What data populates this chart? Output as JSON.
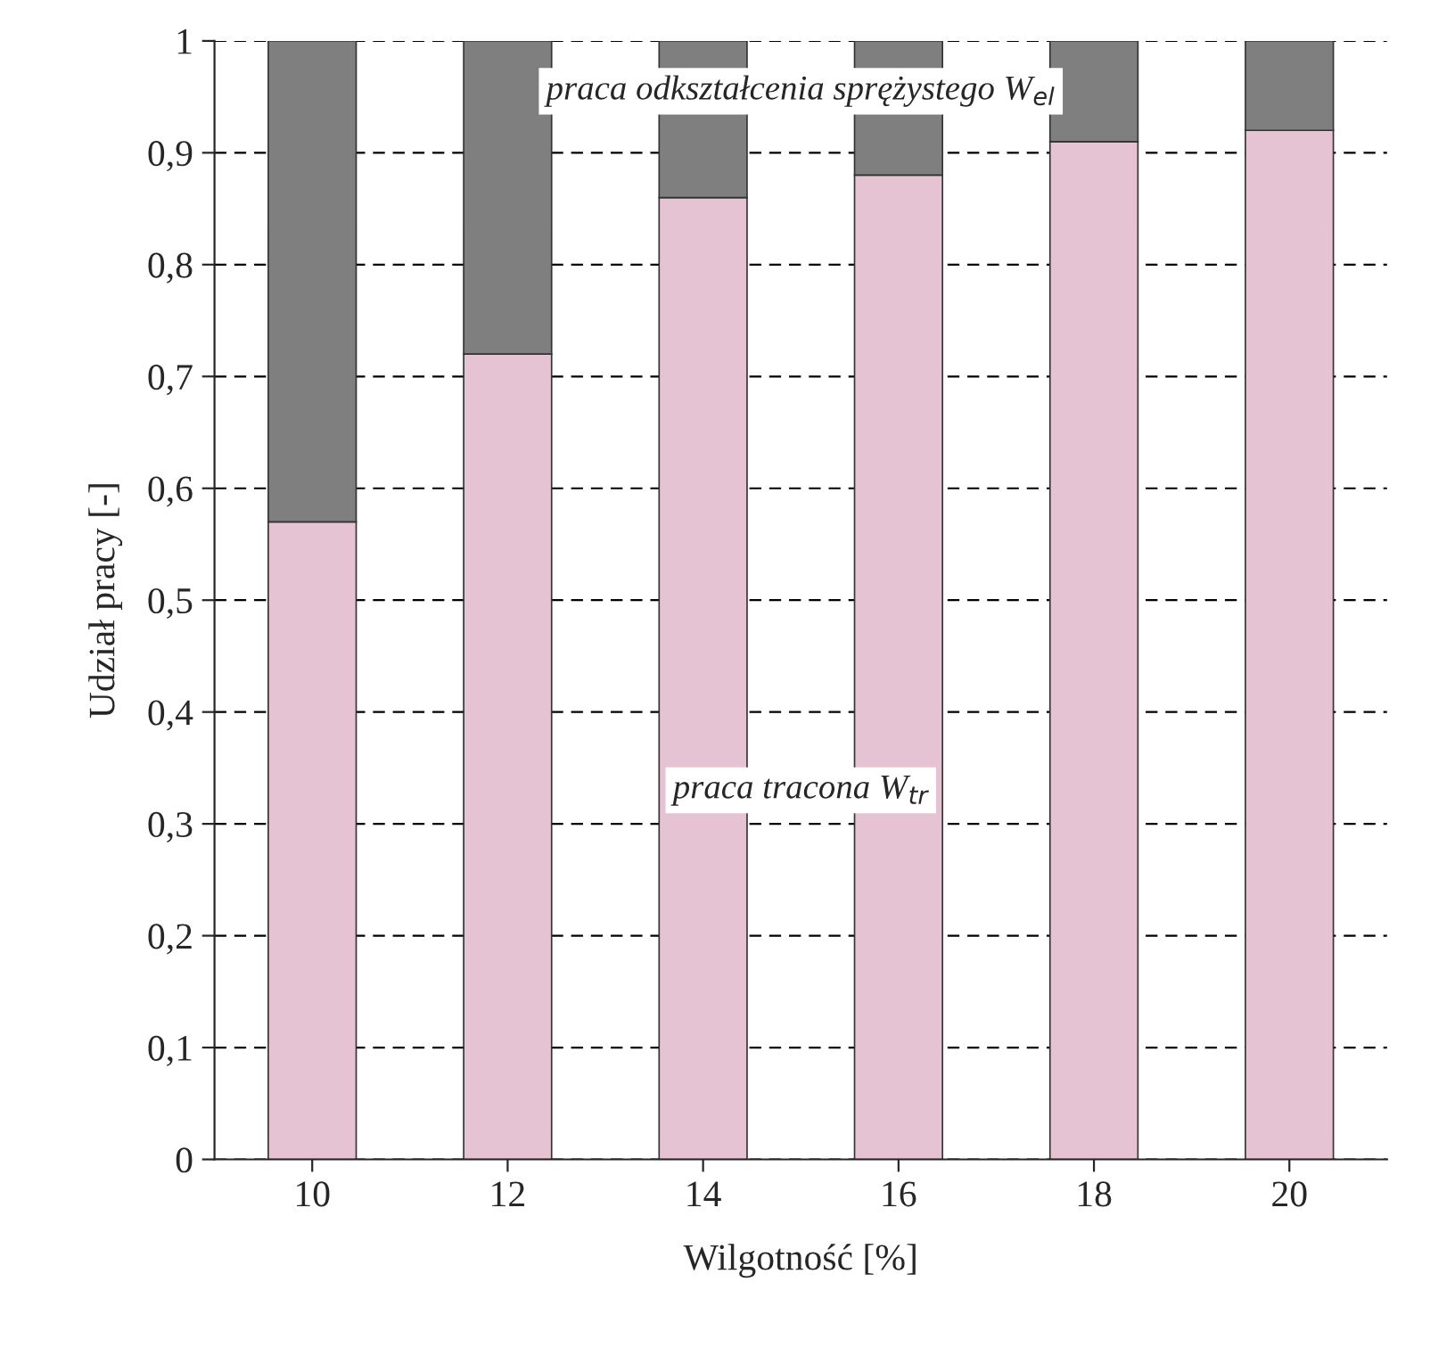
{
  "chart_data": {
    "type": "bar",
    "stacked": true,
    "xlabel": "Wilgotność [%]",
    "ylabel": "Udział pracy [-]",
    "categories": [
      "10",
      "12",
      "14",
      "16",
      "18",
      "20"
    ],
    "series": [
      {
        "name": "praca tracona W$_{tr}$",
        "color": "#e6c3d2",
        "values": [
          0.57,
          0.72,
          0.86,
          0.88,
          0.91,
          0.92
        ]
      },
      {
        "name": "praca odkształcenia sprężystego W$_{el}$",
        "color": "#7f7f7f",
        "values": [
          0.43,
          0.28,
          0.14,
          0.12,
          0.09,
          0.08
        ]
      }
    ],
    "ylim": [
      0,
      1
    ],
    "yticks": [
      0,
      {
        "value": 0.1,
        "label": "0,1"
      },
      {
        "value": 0.2,
        "label": "0,2"
      },
      {
        "value": 0.3,
        "label": "0,3"
      },
      {
        "value": 0.4,
        "label": "0,4"
      },
      {
        "value": 0.5,
        "label": "0,5"
      },
      {
        "value": 0.6,
        "label": "0,6"
      },
      {
        "value": 0.7,
        "label": "0,7"
      },
      {
        "value": 0.8,
        "label": "0,8"
      },
      {
        "value": 0.9,
        "label": "0,9"
      },
      1
    ],
    "grid": "y",
    "legend": false
  }
}
